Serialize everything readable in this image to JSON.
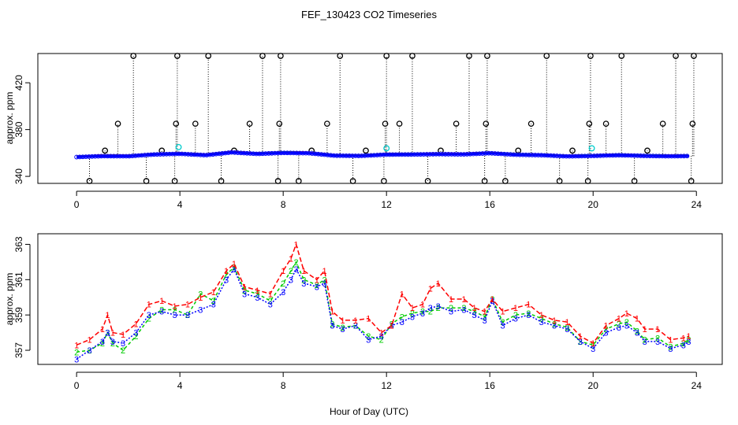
{
  "title": "FEF_130423  CO2 Timeseries",
  "xlabel": "Hour of Day (UTC)",
  "colors": {
    "series1": "#ff0000",
    "series2": "#00cc00",
    "series3": "#0000ff",
    "outlier": "#000000",
    "flagged": "#00cccc",
    "axis": "#000000"
  },
  "chart_data": [
    {
      "type": "scatter",
      "name": "top-panel",
      "ylabel": "approx. ppm",
      "xlim": [
        -1.5,
        25
      ],
      "ylim": [
        334,
        445
      ],
      "xticks": [
        0,
        4,
        8,
        12,
        16,
        20,
        24
      ],
      "yticks": [
        340,
        380,
        420
      ],
      "baseline_series": [
        {
          "name": "1",
          "x": [
            0,
            1,
            2,
            3,
            4,
            5,
            6,
            7,
            8,
            9,
            10,
            11,
            12,
            13,
            14,
            15,
            16,
            17,
            18,
            19,
            20,
            21,
            22,
            23,
            23.7
          ],
          "y": [
            356.8,
            357.8,
            357.5,
            359,
            359.6,
            358.5,
            361,
            359.5,
            360.5,
            360.2,
            358,
            357.8,
            359,
            359.1,
            359.4,
            359.2,
            360.2,
            358.8,
            358.4,
            357.4,
            357.8,
            358.5,
            357.8,
            357.5,
            357.6
          ]
        },
        {
          "name": "2",
          "x": [
            0,
            1,
            2,
            3,
            4,
            5,
            6,
            7,
            8,
            9,
            10,
            11,
            12,
            13,
            14,
            15,
            16,
            17,
            18,
            19,
            20,
            21,
            22,
            23,
            23.7
          ],
          "y": [
            356.6,
            357.4,
            357.3,
            358.8,
            359.4,
            358.2,
            360.6,
            359.3,
            360.2,
            359.9,
            357.8,
            357.6,
            358.7,
            358.8,
            359.1,
            358.9,
            359.9,
            358.6,
            358.2,
            357.2,
            357.6,
            358.2,
            357.6,
            357.3,
            357.5
          ]
        },
        {
          "name": "3",
          "x": [
            0,
            1,
            2,
            3,
            4,
            5,
            6,
            7,
            8,
            9,
            10,
            11,
            12,
            13,
            14,
            15,
            16,
            17,
            18,
            19,
            20,
            21,
            22,
            23,
            23.7
          ],
          "y": [
            356.5,
            357.3,
            357.2,
            358.7,
            359.3,
            358.1,
            360.5,
            359.2,
            360.1,
            359.8,
            357.7,
            357.5,
            358.6,
            358.7,
            359,
            358.8,
            359.8,
            358.5,
            358.1,
            357.1,
            357.5,
            358.1,
            357.5,
            357.2,
            357.4
          ]
        }
      ],
      "outliers": {
        "x": [
          0.5,
          1.1,
          1.6,
          2.2,
          2.7,
          3.3,
          3.8,
          3.85,
          3.9,
          4.6,
          5.1,
          5.6,
          6.1,
          6.7,
          7.2,
          7.8,
          7.85,
          7.9,
          8.6,
          9.1,
          9.7,
          10.2,
          10.7,
          11.2,
          11.9,
          11.95,
          12.0,
          12.5,
          13.0,
          13.6,
          14.1,
          14.7,
          15.2,
          15.8,
          15.85,
          15.9,
          16.6,
          17.1,
          17.6,
          18.2,
          18.7,
          19.2,
          19.8,
          19.85,
          19.9,
          20.5,
          21.1,
          21.6,
          22.1,
          22.7,
          23.2,
          23.8,
          23.85,
          23.9
        ],
        "y": [
          336,
          362,
          385,
          443,
          336,
          362,
          336,
          385,
          443,
          385,
          443,
          336,
          362,
          385,
          443,
          336,
          385,
          443,
          336,
          362,
          385,
          443,
          336,
          362,
          336,
          385,
          443,
          385,
          443,
          336,
          362,
          385,
          443,
          336,
          385,
          443,
          336,
          362,
          385,
          443,
          336,
          362,
          336,
          385,
          443,
          385,
          443,
          336,
          362,
          385,
          443,
          336,
          385,
          443
        ]
      },
      "flagged": {
        "x": [
          3.95,
          12.0,
          19.95
        ],
        "y": [
          365,
          364,
          364
        ]
      }
    },
    {
      "type": "line",
      "name": "bottom-panel",
      "ylabel": "approx. ppm",
      "xlim": [
        -1.5,
        25
      ],
      "ylim": [
        356.2,
        363.6
      ],
      "xticks": [
        0,
        4,
        8,
        12,
        16,
        20,
        24
      ],
      "yticks": [
        357,
        359,
        361,
        363
      ],
      "series": [
        {
          "name": "1",
          "x": [
            0,
            0.5,
            1,
            1.2,
            1.4,
            1.8,
            2.3,
            2.8,
            3.3,
            3.8,
            4.3,
            4.8,
            5.3,
            5.8,
            6.1,
            6.5,
            7,
            7.5,
            8,
            8.3,
            8.5,
            8.8,
            9.3,
            9.6,
            9.9,
            10.3,
            10.8,
            11.3,
            11.8,
            12.2,
            12.6,
            13,
            13.4,
            13.7,
            14,
            14.5,
            15,
            15.4,
            15.8,
            16.1,
            16.5,
            17,
            17.5,
            18,
            18.5,
            19,
            19.5,
            20,
            20.5,
            21,
            21.3,
            21.7,
            22,
            22.5,
            23,
            23.5,
            23.7
          ],
          "y": [
            357.3,
            357.6,
            358.2,
            359,
            358,
            357.9,
            358.5,
            359.6,
            359.8,
            359.5,
            359.6,
            360,
            360.3,
            361.5,
            361.9,
            360.6,
            360.4,
            360.2,
            361.5,
            362.2,
            363,
            361.5,
            361,
            361.5,
            359.2,
            358.7,
            358.7,
            358.8,
            358,
            358.4,
            360.2,
            359.4,
            359.6,
            360.5,
            360.8,
            359.9,
            359.9,
            359.4,
            359.2,
            359.9,
            359.2,
            359.4,
            359.6,
            359,
            358.7,
            358.6,
            357.8,
            357.4,
            358.4,
            358.8,
            359.1,
            358.8,
            358.2,
            358.2,
            357.6,
            357.7,
            357.8
          ]
        },
        {
          "name": "2",
          "x": [
            0,
            0.5,
            1,
            1.2,
            1.4,
            1.8,
            2.3,
            2.8,
            3.3,
            3.8,
            4.3,
            4.8,
            5.3,
            5.8,
            6.1,
            6.5,
            7,
            7.5,
            8,
            8.3,
            8.5,
            8.8,
            9.3,
            9.6,
            9.9,
            10.3,
            10.8,
            11.3,
            11.8,
            12.2,
            12.6,
            13,
            13.4,
            13.7,
            14,
            14.5,
            15,
            15.4,
            15.8,
            16.1,
            16.5,
            17,
            17.5,
            18,
            18.5,
            19,
            19.5,
            20,
            20.5,
            21,
            21.3,
            21.7,
            22,
            22.5,
            23,
            23.5,
            23.7
          ],
          "y": [
            356.9,
            357,
            357.4,
            358,
            357.4,
            357,
            357.8,
            358.8,
            359.3,
            359.3,
            359,
            360.2,
            359.8,
            361.3,
            361.7,
            360.4,
            360.2,
            359.8,
            360.8,
            361.5,
            362,
            361,
            360.7,
            361,
            358.5,
            358.3,
            358.4,
            357.8,
            357.6,
            358.5,
            358.9,
            359.1,
            359.2,
            359.2,
            359.4,
            359.4,
            359.4,
            359.2,
            358.9,
            359.9,
            358.6,
            359,
            359.1,
            358.8,
            358.5,
            358.3,
            357.5,
            357.3,
            358.2,
            358.5,
            358.6,
            358.1,
            357.6,
            357.7,
            357.2,
            357.4,
            357.6
          ]
        },
        {
          "name": "3",
          "x": [
            0,
            0.5,
            1,
            1.2,
            1.4,
            1.8,
            2.3,
            2.8,
            3.3,
            3.8,
            4.3,
            4.8,
            5.3,
            5.8,
            6.1,
            6.5,
            7,
            7.5,
            8,
            8.3,
            8.5,
            8.8,
            9.3,
            9.6,
            9.9,
            10.3,
            10.8,
            11.3,
            11.8,
            12.2,
            12.6,
            13,
            13.4,
            13.7,
            14,
            14.5,
            15,
            15.4,
            15.8,
            16.1,
            16.5,
            17,
            17.5,
            18,
            18.5,
            19,
            19.5,
            20,
            20.5,
            21,
            21.3,
            21.7,
            22,
            22.5,
            23,
            23.5,
            23.7
          ],
          "y": [
            356.5,
            357,
            357.5,
            358,
            357.5,
            357.4,
            358,
            359,
            359.2,
            359,
            359,
            359.3,
            359.6,
            361,
            361.6,
            360.2,
            360,
            359.6,
            360.3,
            361,
            361.6,
            360.8,
            360.6,
            360.8,
            358.4,
            358.2,
            358.4,
            357.6,
            357.8,
            358.4,
            358.6,
            358.9,
            359.1,
            359.4,
            359.5,
            359.2,
            359.3,
            359,
            358.7,
            359.8,
            358.4,
            358.8,
            359,
            358.6,
            358.4,
            358.2,
            357.5,
            357.1,
            358,
            358.3,
            358.4,
            358,
            357.5,
            357.5,
            357.1,
            357.3,
            357.5
          ]
        }
      ]
    }
  ]
}
